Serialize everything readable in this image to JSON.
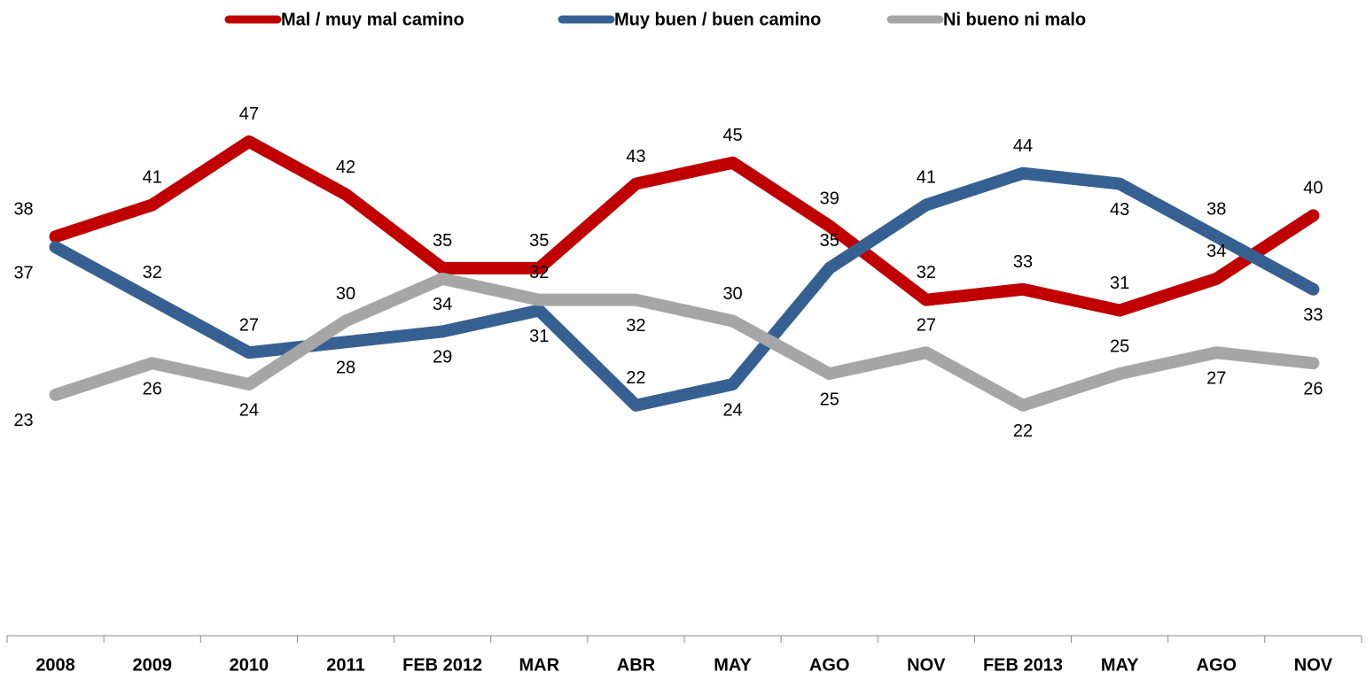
{
  "chart_data": {
    "type": "line",
    "categories": [
      "2008",
      "2009",
      "2010",
      "2011",
      "FEB 2012",
      "MAR",
      "ABR",
      "MAY",
      "AGO",
      "NOV",
      "FEB 2013",
      "MAY",
      "AGO",
      "NOV"
    ],
    "series": [
      {
        "name": "Mal / muy mal camino",
        "color": "#c00000",
        "values": [
          38,
          41,
          47,
          42,
          35,
          35,
          43,
          45,
          39,
          32,
          33,
          31,
          34,
          40
        ]
      },
      {
        "name": "Muy buen / buen camino",
        "color": "#376092",
        "values": [
          37,
          32,
          27,
          28,
          29,
          31,
          22,
          24,
          35,
          41,
          44,
          43,
          38,
          33
        ]
      },
      {
        "name": "Ni bueno ni malo",
        "color": "#a6a6a6",
        "values": [
          23,
          26,
          24,
          30,
          34,
          32,
          32,
          30,
          25,
          27,
          22,
          25,
          27,
          26
        ]
      }
    ],
    "ylim": [
      0,
      60
    ],
    "legend": "top"
  }
}
